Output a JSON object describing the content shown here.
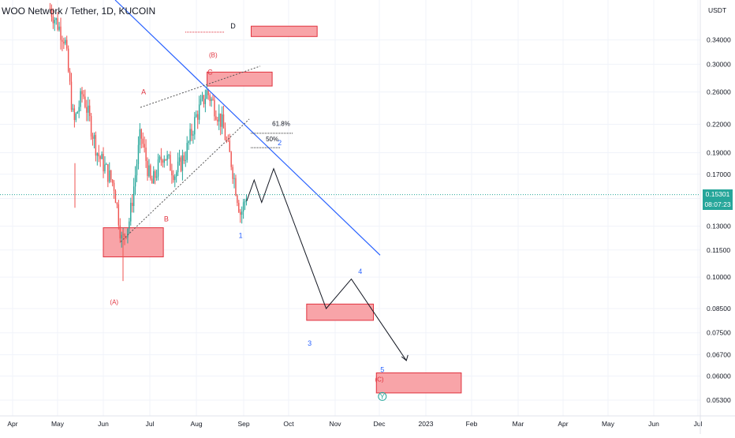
{
  "header": {
    "symbol": "WOO Network / Tether",
    "interval": "1D",
    "exchange": "KUCOIN",
    "currency": "USDT"
  },
  "current_price": {
    "value": "0.15301",
    "countdown": "08:07:23"
  },
  "colors": {
    "up": "#26a69a",
    "down": "#ef5350",
    "trendline": "#2962ff",
    "projection": "#131722",
    "zone_fill": "#f8a4a8",
    "zone_border": "#e0313d",
    "label_red": "#e0313d",
    "label_blue": "#2962ff",
    "price_line": "#26a69a"
  },
  "chart_data": {
    "type": "candlestick",
    "y_scale": "log",
    "ylim": [
      0.051,
      0.4
    ],
    "y_ticks": [
      "0.34000",
      "0.30000",
      "0.26000",
      "0.22000",
      "0.19000",
      "0.17000",
      "0.15000",
      "0.13000",
      "0.11500",
      "0.10000",
      "0.08500",
      "0.07500",
      "0.06700",
      "0.06000",
      "0.05300"
    ],
    "x_ticks": [
      "Apr",
      "May",
      "Jun",
      "Jul",
      "Aug",
      "Sep",
      "Oct",
      "Nov",
      "Dec",
      "2023",
      "Feb",
      "Mar",
      "Apr",
      "May",
      "Jun",
      "Jul"
    ],
    "x_range": [
      "Apr 2022",
      "Jul 2023"
    ],
    "price_path": [
      [
        "Apr 26",
        0.4
      ],
      [
        "May 6",
        0.34
      ],
      [
        "May 12",
        0.22
      ],
      [
        "May 18",
        0.26
      ],
      [
        "May 28",
        0.19
      ],
      [
        "Jun 8",
        0.16
      ],
      [
        "Jun 13",
        0.12
      ],
      [
        "Jun 18",
        0.135
      ],
      [
        "Jun 25",
        0.21
      ],
      [
        "Jul 2",
        0.16
      ],
      [
        "Jul 10",
        0.19
      ],
      [
        "Jul 18",
        0.17
      ],
      [
        "Jul 25",
        0.19
      ],
      [
        "Aug 1",
        0.23
      ],
      [
        "Aug 8",
        0.26
      ],
      [
        "Aug 12",
        0.245
      ],
      [
        "Aug 18",
        0.22
      ],
      [
        "Aug 24",
        0.18
      ],
      [
        "Aug 30",
        0.138
      ],
      [
        "Sep 3",
        0.153
      ]
    ],
    "projection_path": [
      [
        "Sep 3",
        0.148
      ],
      [
        "Sep 8",
        0.165
      ],
      [
        "Sep 13",
        0.147
      ],
      [
        "Sep 21",
        0.175
      ],
      [
        "Oct 26",
        0.085
      ],
      [
        "Nov 12",
        0.099
      ],
      [
        "Dec 19",
        0.065
      ]
    ],
    "annotations": [
      {
        "text": "A",
        "x": "Jun 27",
        "y": 0.26,
        "color": "red"
      },
      {
        "text": "B",
        "x": "Jul 12",
        "y": 0.135,
        "color": "red"
      },
      {
        "text": "C",
        "x": "Aug 10",
        "y": 0.288,
        "color": "red"
      },
      {
        "text": "D",
        "x": "Aug 25",
        "y": 0.365,
        "color": "dark"
      },
      {
        "text": "(B)",
        "x": "Aug 12",
        "y": 0.315,
        "color": "red"
      },
      {
        "text": "(A)",
        "x": "Jun 8",
        "y": 0.088,
        "color": "red"
      },
      {
        "text": "(C)",
        "x": "Dec 1",
        "y": 0.059,
        "color": "red"
      },
      {
        "text": "1",
        "x": "Aug 30",
        "y": 0.124,
        "color": "blue"
      },
      {
        "text": "2",
        "x": "Sep 25",
        "y": 0.2,
        "color": "blue"
      },
      {
        "text": "3",
        "x": "Oct 15",
        "y": 0.071,
        "color": "blue"
      },
      {
        "text": "4",
        "x": "Nov 18",
        "y": 0.103,
        "color": "blue"
      },
      {
        "text": "5",
        "x": "Dec 3",
        "y": 0.062,
        "color": "blue"
      },
      {
        "text": "Y",
        "x": "Dec 3",
        "y": 0.054,
        "color": "teal"
      },
      {
        "text": "61.8%",
        "x": "Sep 26",
        "y": 0.221,
        "color": "dark"
      },
      {
        "text": "50%",
        "x": "Sep 20",
        "y": 0.204,
        "color": "dark"
      }
    ],
    "zones": [
      {
        "x": [
          "Jun 1",
          "Jul 10"
        ],
        "y": [
          0.111,
          0.129
        ]
      },
      {
        "x": [
          "Aug 8",
          "Sep 20"
        ],
        "y": [
          0.268,
          0.288
        ]
      },
      {
        "x": [
          "Sep 6",
          "Oct 20"
        ],
        "y": [
          0.346,
          0.365
        ]
      },
      {
        "x": [
          "Oct 13",
          "Nov 27"
        ],
        "y": [
          0.08,
          0.087
        ]
      },
      {
        "x": [
          "Nov 29",
          "Jan 25"
        ],
        "y": [
          0.055,
          0.061
        ]
      }
    ]
  }
}
